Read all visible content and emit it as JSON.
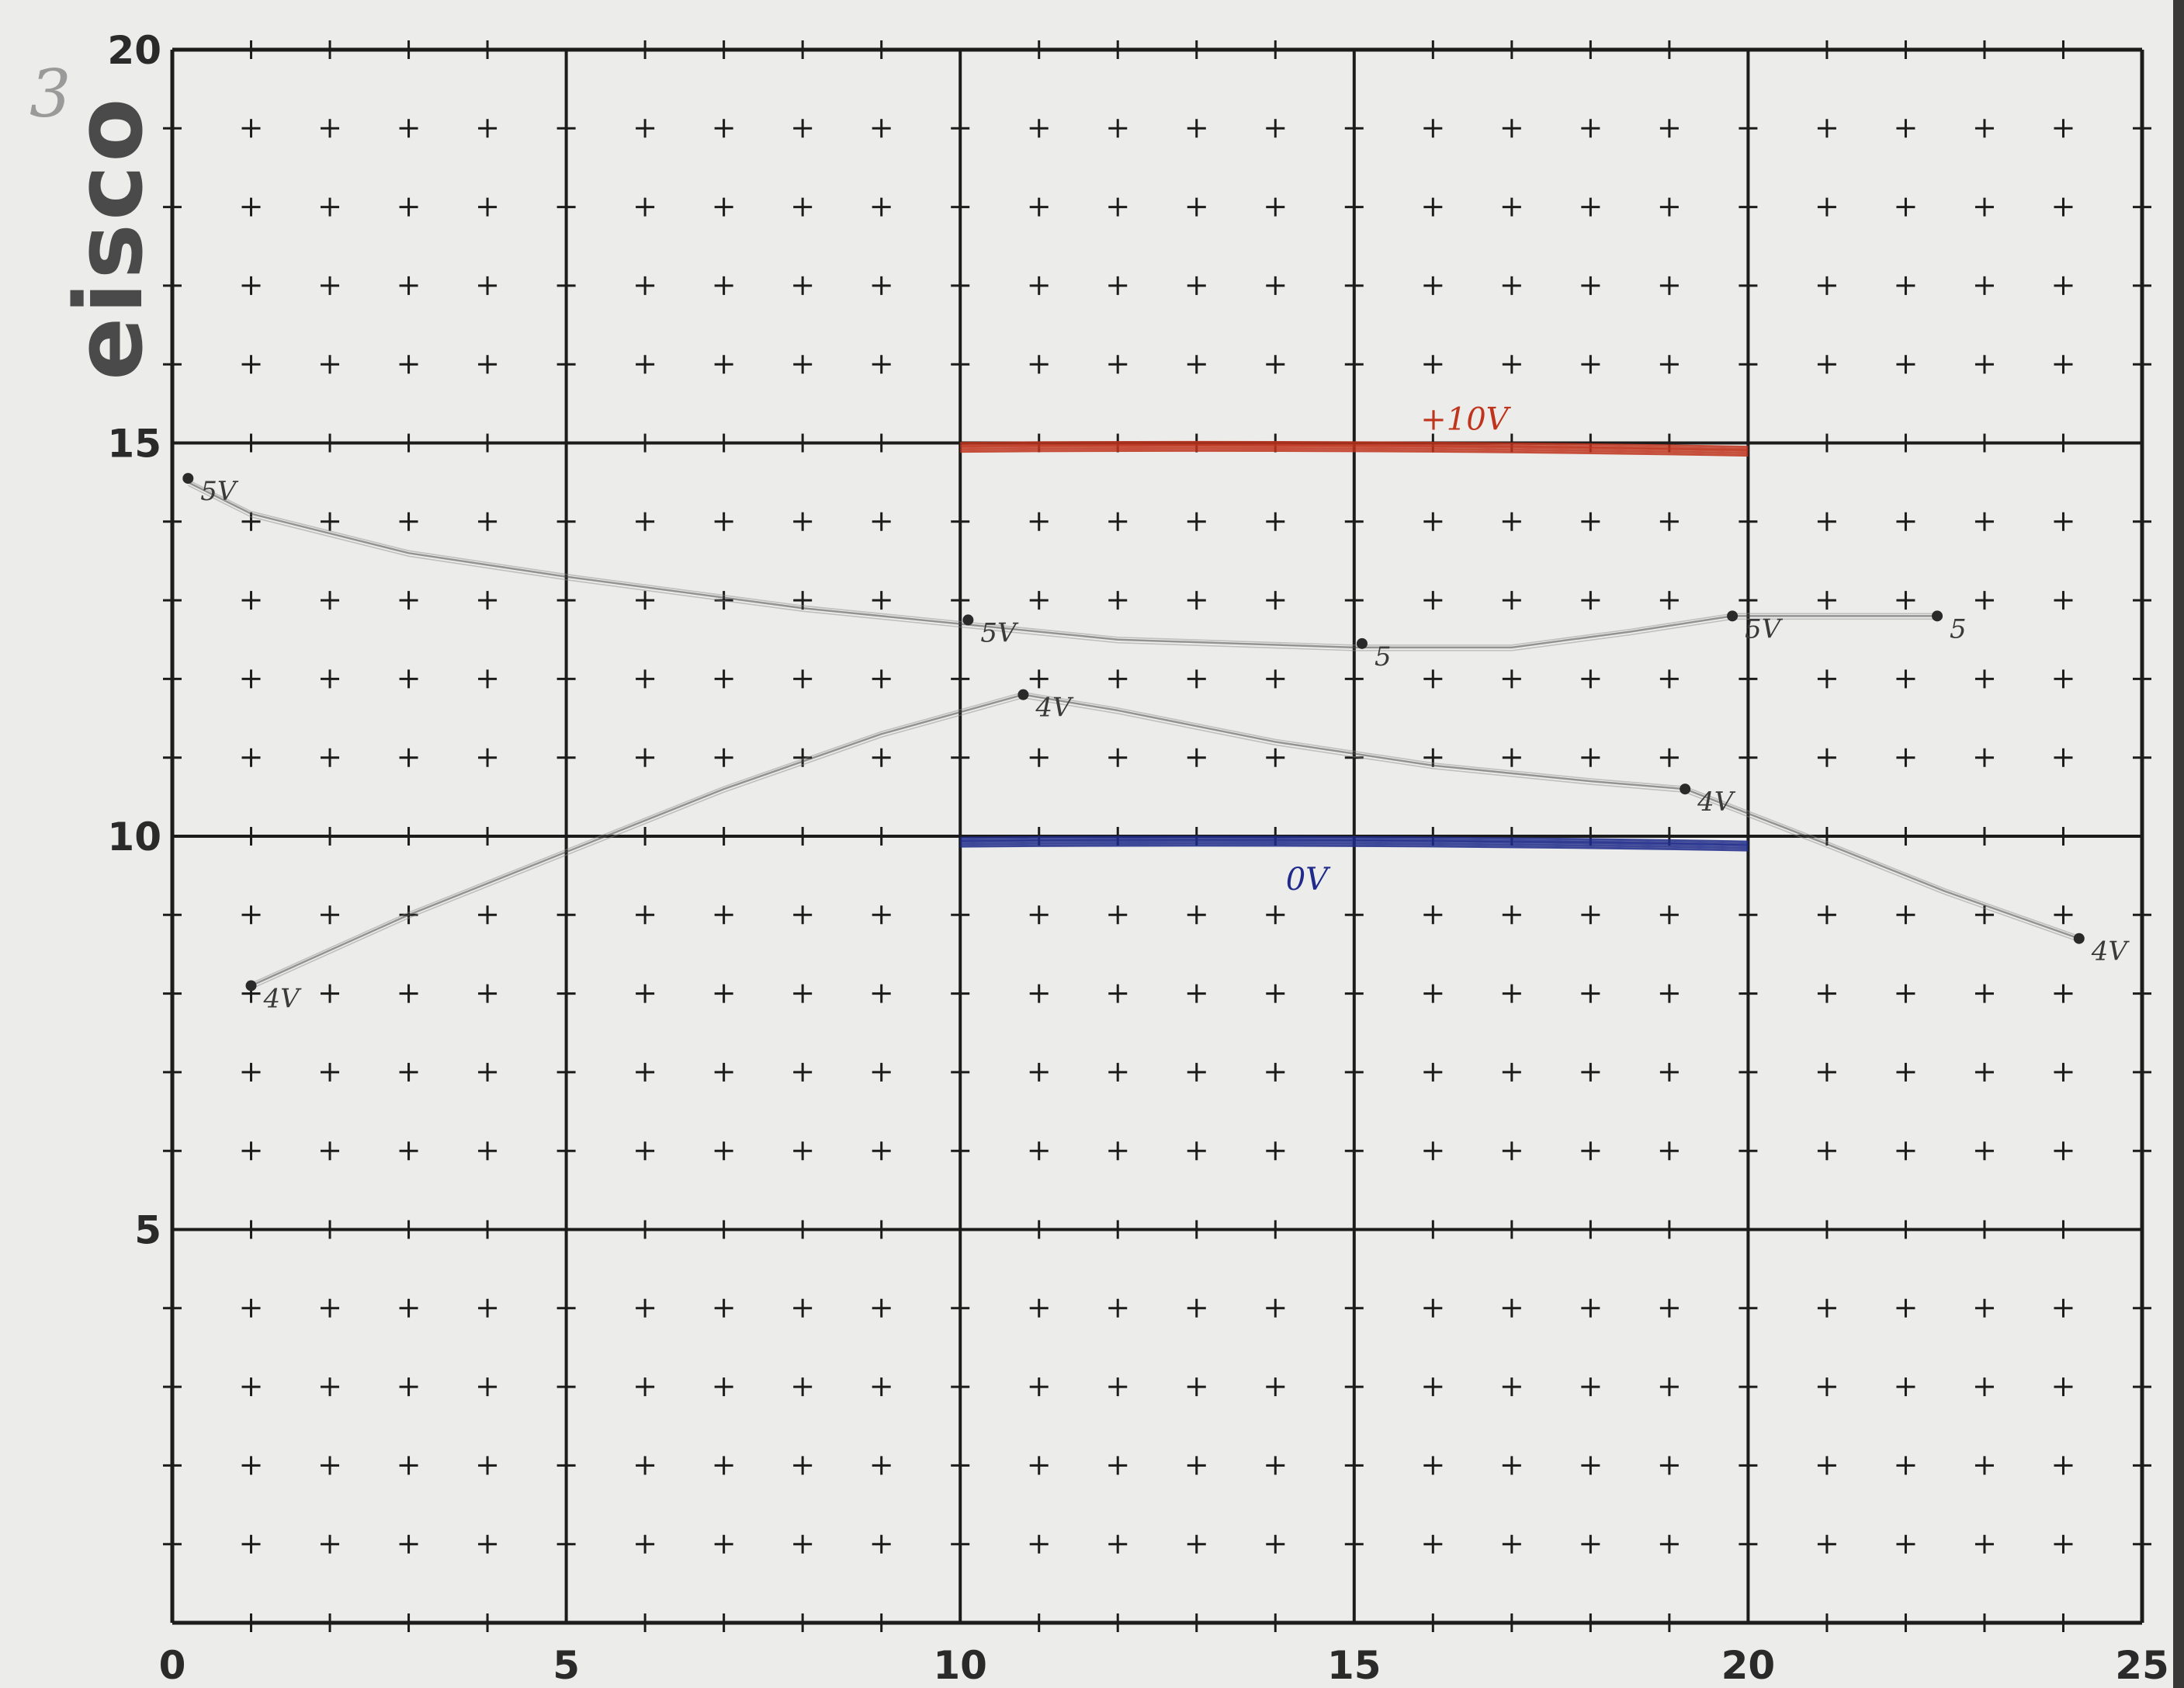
{
  "page_number": "3",
  "brand": "eisco",
  "colors": {
    "paper": "#ececea",
    "grid": "#1c1c1c",
    "pencil": "#8a8a8a",
    "pencil_dark": "#4a4a4a",
    "red_electrode": "#c0341d",
    "blue_electrode": "#1f2a8a"
  },
  "chart_data": {
    "type": "line",
    "title": "",
    "xlabel": "",
    "ylabel": "",
    "xlim": [
      0,
      25
    ],
    "ylim": [
      0,
      20
    ],
    "x_ticks": [
      "0",
      "5",
      "10",
      "15",
      "20",
      "25"
    ],
    "y_ticks": [
      "5",
      "10",
      "15",
      "20"
    ],
    "grid": "major lines every 5 units, plus marks every 1 unit",
    "electrodes": [
      {
        "label": "+10V",
        "y": 14.95,
        "x_start": 10,
        "x_end": 20,
        "color": "red"
      },
      {
        "label": "0V",
        "y": 9.93,
        "x_start": 10,
        "x_end": 20,
        "color": "blue"
      }
    ],
    "series": [
      {
        "points": [
          [
            0.2,
            14.5
          ],
          [
            1,
            14.1
          ],
          [
            3,
            13.6
          ],
          [
            5,
            13.3
          ],
          [
            8,
            12.9
          ],
          [
            10,
            12.7
          ],
          [
            12,
            12.5
          ],
          [
            15,
            12.4
          ],
          [
            17,
            12.4
          ],
          [
            18.5,
            12.6
          ],
          [
            19.8,
            12.8
          ],
          [
            21,
            12.8
          ],
          [
            22.4,
            12.8
          ]
        ],
        "markers": [
          {
            "x": 0.2,
            "y": 14.55,
            "label": "5V"
          },
          {
            "x": 10.1,
            "y": 12.75,
            "label": "5V"
          },
          {
            "x": 15.1,
            "y": 12.45,
            "label": "5"
          },
          {
            "x": 19.8,
            "y": 12.8,
            "label": "5V"
          },
          {
            "x": 22.4,
            "y": 12.8,
            "label": "5"
          }
        ]
      },
      {
        "points": [
          [
            1,
            8.1
          ],
          [
            3,
            9.0
          ],
          [
            5,
            9.8
          ],
          [
            7,
            10.6
          ],
          [
            9,
            11.3
          ],
          [
            10.8,
            11.8
          ],
          [
            12,
            11.6
          ],
          [
            14,
            11.2
          ],
          [
            16,
            10.9
          ],
          [
            18,
            10.7
          ],
          [
            19.2,
            10.6
          ],
          [
            21,
            9.9
          ],
          [
            22.5,
            9.3
          ],
          [
            24.2,
            8.7
          ]
        ],
        "markers": [
          {
            "x": 1,
            "y": 8.1,
            "label": "4V"
          },
          {
            "x": 10.8,
            "y": 11.8,
            "label": "4V"
          },
          {
            "x": 19.2,
            "y": 10.6,
            "label": "4V"
          },
          {
            "x": 24.2,
            "y": 8.7,
            "label": "4V"
          }
        ]
      }
    ]
  }
}
